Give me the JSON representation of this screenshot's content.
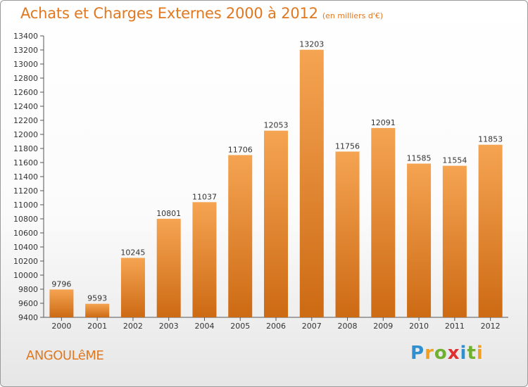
{
  "header": {
    "title": "Achats et Charges Externes 2000 à 2012",
    "subtitle": "(en milliers d'€)"
  },
  "footer": {
    "city": "ANGOULêME",
    "logo_letters": [
      "P",
      "r",
      "o",
      "x",
      "i",
      "t",
      "i"
    ],
    "logo_colors": [
      "#2f8fd0",
      "#f0a020",
      "#70b030",
      "#e03030",
      "#2f8fd0",
      "#70b030",
      "#f0a020"
    ]
  },
  "colors": {
    "accent": "#e07820",
    "bar_light": "#f5a452",
    "bar_dark": "#cd6a14"
  },
  "chart_data": {
    "type": "bar",
    "title": "Achats et Charges Externes 2000 à 2012",
    "subtitle": "(en milliers d'€)",
    "categories": [
      "2000",
      "2001",
      "2002",
      "2003",
      "2004",
      "2005",
      "2006",
      "2007",
      "2008",
      "2009",
      "2010",
      "2011",
      "2012"
    ],
    "values": [
      9796,
      9593,
      10245,
      10801,
      11037,
      11706,
      12053,
      13203,
      11756,
      12091,
      11585,
      11554,
      11853
    ],
    "ylim": [
      9400,
      13400
    ],
    "yticks": [
      9400,
      9600,
      9800,
      10000,
      10200,
      10400,
      10600,
      10800,
      11000,
      11200,
      11400,
      11600,
      11800,
      12000,
      12200,
      12400,
      12600,
      12800,
      13000,
      13200,
      13400
    ],
    "grid": false,
    "legend": "none"
  }
}
